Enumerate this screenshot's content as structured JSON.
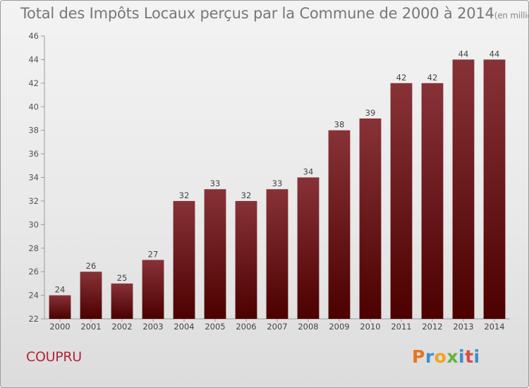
{
  "chart_data": {
    "type": "bar",
    "title": "Total des Impôts Locaux perçus par la Commune de 2000 à 2014",
    "subtitle": "(en milliers d'€)",
    "categories": [
      "2000",
      "2001",
      "2002",
      "2003",
      "2004",
      "2005",
      "2006",
      "2007",
      "2008",
      "2009",
      "2010",
      "2011",
      "2012",
      "2013",
      "2014"
    ],
    "values": [
      24,
      26,
      25,
      27,
      32,
      33,
      32,
      33,
      34,
      38,
      39,
      42,
      42,
      44,
      44
    ],
    "data_labels": [
      "24",
      "26",
      "25",
      "27",
      "32",
      "33",
      "32",
      "33",
      "34",
      "38",
      "39",
      "42",
      "42",
      "44",
      "44"
    ],
    "ylim": [
      22,
      46
    ],
    "yticks": [
      22,
      24,
      26,
      28,
      30,
      32,
      34,
      36,
      38,
      40,
      42,
      44,
      46
    ],
    "ytick_labels": [
      "22",
      "24",
      "26",
      "28",
      "30",
      "32",
      "34",
      "36",
      "38",
      "40",
      "42",
      "44",
      "46"
    ],
    "xlabel": "",
    "ylabel": "",
    "grid": false,
    "bar_color": "#7a1c22"
  },
  "commune": "COUPRU",
  "logo": {
    "text": "Proxiti",
    "colors": [
      "#e8741c",
      "#3b8fd0",
      "#f0a51d",
      "#63b33d",
      "#3b8fd0",
      "#e04b3e",
      "#3b8fd0"
    ]
  }
}
